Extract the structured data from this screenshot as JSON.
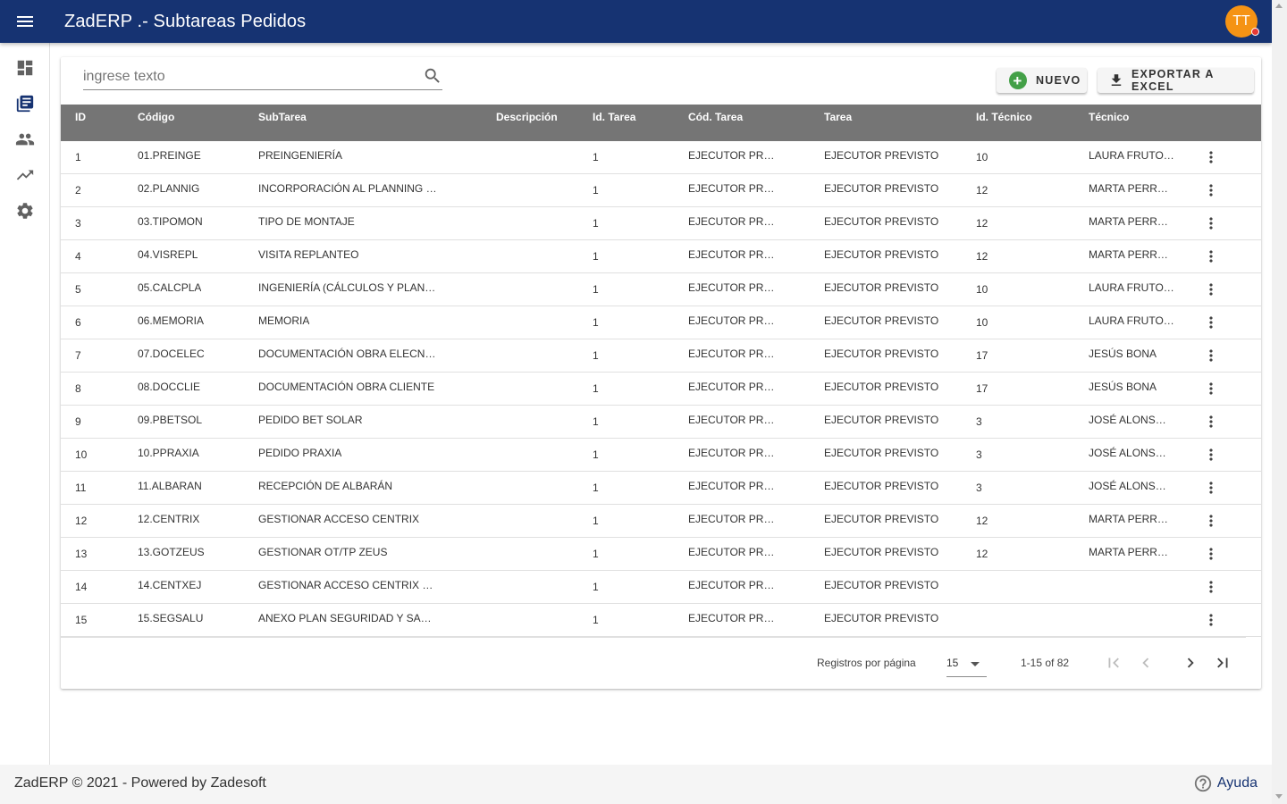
{
  "app": {
    "title": "ZadERP .- Subtareas Pedidos",
    "avatar_initials": "TT",
    "brand_color": "#163372",
    "avatar_color": "#f59314"
  },
  "sidebar": {
    "items": [
      {
        "icon": "dashboard-icon",
        "active": false
      },
      {
        "icon": "library-books-icon",
        "active": true
      },
      {
        "icon": "people-icon",
        "active": false
      },
      {
        "icon": "trending-up-icon",
        "active": false
      },
      {
        "icon": "settings-icon",
        "active": false
      }
    ]
  },
  "toolbar": {
    "search_placeholder": "ingrese texto",
    "new_label": "NUEVO",
    "export_label": "EXPORTAR A EXCEL"
  },
  "table": {
    "columns": [
      "ID",
      "Código",
      "SubTarea",
      "Descripción",
      "Id. Tarea",
      "Cód. Tarea",
      "Tarea",
      "Id. Técnico",
      "Técnico"
    ],
    "rows": [
      {
        "id": "1",
        "codigo": "01.PREINGE",
        "subtarea": "PREINGENIERÍA",
        "descripcion": "",
        "id_tarea": "1",
        "cod_tarea": "EJECUTOR PREVISTO",
        "tarea": "EJECUTOR PREVISTO",
        "id_tecnico": "10",
        "tecnico": "LAURA FRUTOS GARCÍA"
      },
      {
        "id": "2",
        "codigo": "02.PLANNIG",
        "subtarea": "INCORPORACIÓN AL PLANNING GENERAL",
        "descripcion": "",
        "id_tarea": "1",
        "cod_tarea": "EJECUTOR PREVISTO",
        "tarea": "EJECUTOR PREVISTO",
        "id_tecnico": "12",
        "tecnico": "MARTA PERREALES"
      },
      {
        "id": "3",
        "codigo": "03.TIPOMON",
        "subtarea": "TIPO DE MONTAJE",
        "descripcion": "",
        "id_tarea": "1",
        "cod_tarea": "EJECUTOR PREVISTO",
        "tarea": "EJECUTOR PREVISTO",
        "id_tecnico": "12",
        "tecnico": "MARTA PERREALES"
      },
      {
        "id": "4",
        "codigo": "04.VISREPL",
        "subtarea": "VISITA REPLANTEO",
        "descripcion": "",
        "id_tarea": "1",
        "cod_tarea": "EJECUTOR PREVISTO",
        "tarea": "EJECUTOR PREVISTO",
        "id_tecnico": "12",
        "tecnico": "MARTA PERREALES"
      },
      {
        "id": "5",
        "codigo": "05.CALCPLA",
        "subtarea": "INGENIERÍA (CÁLCULOS Y PLANOS)",
        "descripcion": "",
        "id_tarea": "1",
        "cod_tarea": "EJECUTOR PREVISTO",
        "tarea": "EJECUTOR PREVISTO",
        "id_tecnico": "10",
        "tecnico": "LAURA FRUTOS GARCÍA"
      },
      {
        "id": "6",
        "codigo": "06.MEMORIA",
        "subtarea": "MEMORIA",
        "descripcion": "",
        "id_tarea": "1",
        "cod_tarea": "EJECUTOR PREVISTO",
        "tarea": "EJECUTOR PREVISTO",
        "id_tecnico": "10",
        "tecnico": "LAURA FRUTOS GARCÍA"
      },
      {
        "id": "7",
        "codigo": "07.DOCELEC",
        "subtarea": "DOCUMENTACIÓN OBRA ELECNOR",
        "descripcion": "",
        "id_tarea": "1",
        "cod_tarea": "EJECUTOR PREVISTO",
        "tarea": "EJECUTOR PREVISTO",
        "id_tecnico": "17",
        "tecnico": "JESÚS BONA"
      },
      {
        "id": "8",
        "codigo": "08.DOCCLIE",
        "subtarea": "DOCUMENTACIÓN OBRA CLIENTE",
        "descripcion": "",
        "id_tarea": "1",
        "cod_tarea": "EJECUTOR PREVISTO",
        "tarea": "EJECUTOR PREVISTO",
        "id_tecnico": "17",
        "tecnico": "JESÚS BONA"
      },
      {
        "id": "9",
        "codigo": "09.PBETSOL",
        "subtarea": "PEDIDO BET SOLAR",
        "descripcion": "",
        "id_tarea": "1",
        "cod_tarea": "EJECUTOR PREVISTO",
        "tarea": "EJECUTOR PREVISTO",
        "id_tecnico": "3",
        "tecnico": "JOSÉ ALONSO VILLA"
      },
      {
        "id": "10",
        "codigo": "10.PPRAXIA",
        "subtarea": "PEDIDO PRAXIA",
        "descripcion": "",
        "id_tarea": "1",
        "cod_tarea": "EJECUTOR PREVISTO",
        "tarea": "EJECUTOR PREVISTO",
        "id_tecnico": "3",
        "tecnico": "JOSÉ ALONSO VILLA"
      },
      {
        "id": "11",
        "codigo": "11.ALBARAN",
        "subtarea": "RECEPCIÓN DE ALBARÁN",
        "descripcion": "",
        "id_tarea": "1",
        "cod_tarea": "EJECUTOR PREVISTO",
        "tarea": "EJECUTOR PREVISTO",
        "id_tecnico": "3",
        "tecnico": "JOSÉ ALONSO VILLA"
      },
      {
        "id": "12",
        "codigo": "12.CENTRIX",
        "subtarea": "GESTIONAR ACCESO CENTRIX",
        "descripcion": "",
        "id_tarea": "1",
        "cod_tarea": "EJECUTOR PREVISTO",
        "tarea": "EJECUTOR PREVISTO",
        "id_tecnico": "12",
        "tecnico": "MARTA PERREALES"
      },
      {
        "id": "13",
        "codigo": "13.GOTZEUS",
        "subtarea": "GESTIONAR OT/TP ZEUS",
        "descripcion": "",
        "id_tarea": "1",
        "cod_tarea": "EJECUTOR PREVISTO",
        "tarea": "EJECUTOR PREVISTO",
        "id_tecnico": "12",
        "tecnico": "MARTA PERREALES"
      },
      {
        "id": "14",
        "codigo": "14.CENTXEJ",
        "subtarea": "GESTIONAR ACCESO CENTRIX EJECUCIÓN",
        "descripcion": "",
        "id_tarea": "1",
        "cod_tarea": "EJECUTOR PREVISTO",
        "tarea": "EJECUTOR PREVISTO",
        "id_tecnico": "",
        "tecnico": ""
      },
      {
        "id": "15",
        "codigo": "15.SEGSALU",
        "subtarea": "ANEXO PLAN SEGURIDAD Y SALUD",
        "descripcion": "",
        "id_tarea": "1",
        "cod_tarea": "EJECUTOR PREVISTO",
        "tarea": "EJECUTOR PREVISTO",
        "id_tecnico": "",
        "tecnico": ""
      }
    ]
  },
  "pagination": {
    "rows_per_page_label": "Registros por página",
    "rows_per_page": "15",
    "range": "1-15 of 82"
  },
  "footer": {
    "text": "ZadERP © 2021 - Powered by Zadesoft",
    "help_label": "Ayuda"
  }
}
